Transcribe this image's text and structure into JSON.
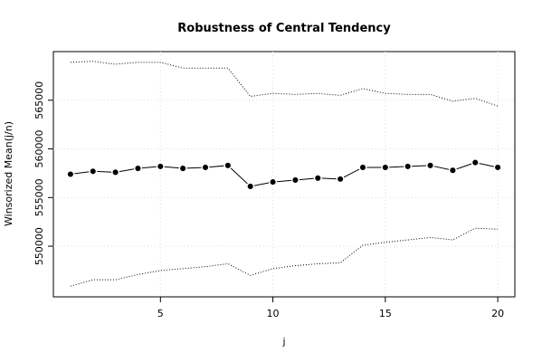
{
  "chart_data": {
    "type": "line",
    "title": "Robustness of Central Tendency",
    "xlabel": "j",
    "ylabel": "Winsorized Mean(j/n)",
    "x": [
      1,
      2,
      3,
      4,
      5,
      6,
      7,
      8,
      9,
      10,
      11,
      12,
      13,
      14,
      15,
      16,
      17,
      18,
      19,
      20
    ],
    "series": [
      {
        "color": "#000000",
        "style": "line-points",
        "values": [
          557400,
          557700,
          557600,
          558000,
          558200,
          558000,
          558100,
          558300,
          556150,
          556600,
          556800,
          557000,
          556900,
          558100,
          558100,
          558200,
          558300,
          557800,
          558600,
          558100
        ]
      },
      {
        "color": "#000000",
        "style": "dotted",
        "values": [
          568900,
          569000,
          568700,
          568900,
          568900,
          568300,
          568300,
          568300,
          565400,
          565700,
          565600,
          565700,
          565500,
          566200,
          565700,
          565600,
          565600,
          564900,
          565200,
          564400
        ]
      },
      {
        "color": "#000000",
        "style": "dotted",
        "values": [
          545900,
          546550,
          546550,
          547100,
          547500,
          547700,
          547900,
          548200,
          547000,
          547700,
          548000,
          548200,
          548300,
          550100,
          550400,
          550650,
          550900,
          550650,
          551850,
          551750
        ]
      }
    ],
    "xlim": [
      0.24,
      20.76
    ],
    "xticks": [
      5,
      10,
      15,
      20
    ],
    "ylim": [
      544800,
      570000
    ],
    "yticks": [
      550000,
      555000,
      560000,
      565000
    ],
    "grid": true
  }
}
